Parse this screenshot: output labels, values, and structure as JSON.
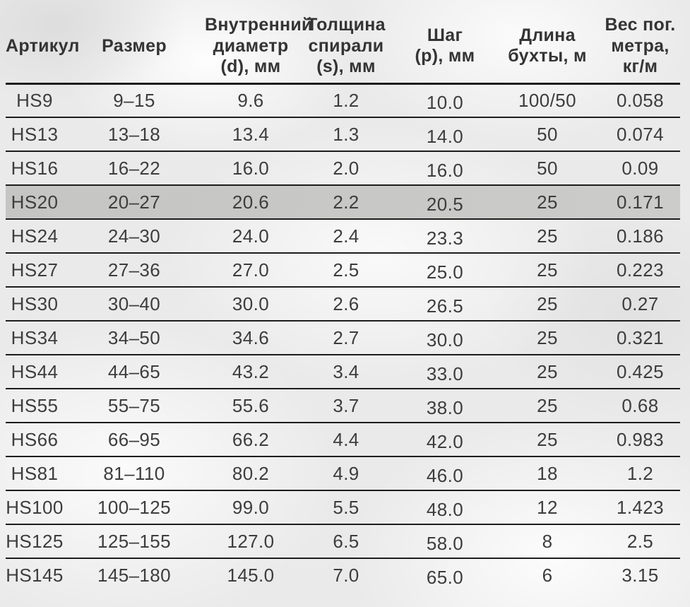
{
  "table": {
    "columns": [
      "Артикул",
      "Размер",
      "Внутренний\nдиаметр\n(d), мм",
      "Толщина\nспирали\n(s), мм",
      "Шаг\n(p), мм",
      "Длина\nбухты, м",
      "Вес пог.\nметра,\nкг/м"
    ],
    "rows": [
      [
        "HS9",
        "9–15",
        "9.6",
        "1.2",
        "10.0",
        "100/50",
        "0.058"
      ],
      [
        "HS13",
        "13–18",
        "13.4",
        "1.3",
        "14.0",
        "50",
        "0.074"
      ],
      [
        "HS16",
        "16–22",
        "16.0",
        "2.0",
        "16.0",
        "50",
        "0.09"
      ],
      [
        "HS20",
        "20–27",
        "20.6",
        "2.2",
        "20.5",
        "25",
        "0.171"
      ],
      [
        "HS24",
        "24–30",
        "24.0",
        "2.4",
        "23.3",
        "25",
        "0.186"
      ],
      [
        "HS27",
        "27–36",
        "27.0",
        "2.5",
        "25.0",
        "25",
        "0.223"
      ],
      [
        "HS30",
        "30–40",
        "30.0",
        "2.6",
        "26.5",
        "25",
        "0.27"
      ],
      [
        "HS34",
        "34–50",
        "34.6",
        "2.7",
        "30.0",
        "25",
        "0.321"
      ],
      [
        "HS44",
        "44–65",
        "43.2",
        "3.4",
        "33.0",
        "25",
        "0.425"
      ],
      [
        "HS55",
        "55–75",
        "55.6",
        "3.7",
        "38.0",
        "25",
        "0.68"
      ],
      [
        "HS66",
        "66–95",
        "66.2",
        "4.4",
        "42.0",
        "25",
        "0.983"
      ],
      [
        "HS81",
        "81–110",
        "80.2",
        "4.9",
        "46.0",
        "18",
        "1.2"
      ],
      [
        "HS100",
        "100–125",
        "99.0",
        "5.5",
        "48.0",
        "12",
        "1.423"
      ],
      [
        "HS125",
        "125–155",
        "127.0",
        "6.5",
        "58.0",
        "8",
        "2.5"
      ],
      [
        "HS145",
        "145–180",
        "145.0",
        "7.0",
        "65.0",
        "6",
        "3.15"
      ]
    ],
    "highlighted_row_index": 3,
    "highlighted_article": "HS20",
    "colors": {
      "highlight": "#c8c8c6",
      "rule": "#1d1d1d",
      "text": "#3d3d3d"
    }
  }
}
